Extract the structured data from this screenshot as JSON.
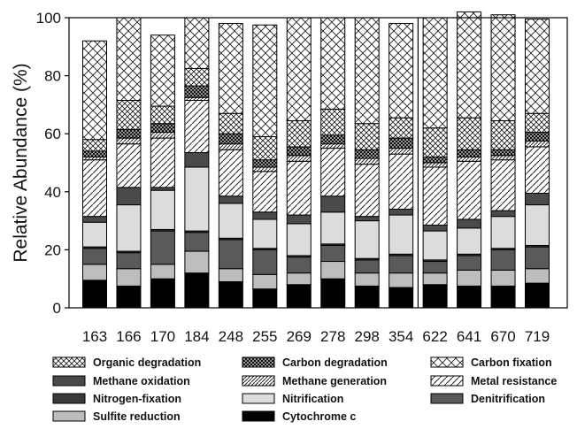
{
  "chart_data": {
    "type": "bar",
    "stacked": true,
    "ylabel": "Relative Abundance (%)",
    "xlabel": "",
    "ylim": [
      0,
      100
    ],
    "yticks": [
      0,
      20,
      40,
      60,
      80,
      100
    ],
    "grid": false,
    "legend_position": "bottom",
    "categories": [
      "163",
      "166",
      "170",
      "184",
      "248",
      "255",
      "269",
      "278",
      "298",
      "354",
      "622",
      "641",
      "670",
      "719"
    ],
    "series": [
      {
        "name": "Cytochrome c",
        "fill": "solid-black",
        "values": [
          9.5,
          7.5,
          10,
          12,
          9,
          6.5,
          8,
          10,
          7.5,
          7,
          8,
          7.5,
          7.5,
          8.5
        ]
      },
      {
        "name": "Sulfite reduction",
        "fill": "light-gray",
        "values": [
          5.5,
          6,
          5,
          7.5,
          4.5,
          5,
          4,
          6,
          4.5,
          5,
          4,
          5.5,
          5.5,
          5
        ]
      },
      {
        "name": "Denitrification",
        "fill": "dark-gray",
        "values": [
          5.5,
          5.5,
          11.5,
          6.5,
          10,
          8.5,
          5.5,
          5.5,
          4.5,
          6,
          4,
          5,
          7,
          7.5
        ]
      },
      {
        "name": "Nitrogen-fixation",
        "fill": "very-dark-gray",
        "values": [
          0.5,
          0.5,
          0.5,
          0.5,
          0.5,
          0.5,
          0.5,
          0.5,
          0.5,
          0.5,
          0.5,
          0.5,
          0.5,
          0.5
        ]
      },
      {
        "name": "Nitrification",
        "fill": "pale-gray",
        "values": [
          8.5,
          16,
          13.5,
          22,
          12,
          10,
          11,
          11,
          13,
          13.5,
          10,
          9,
          11,
          14
        ]
      },
      {
        "name": "Methane oxidation",
        "fill": "dark-charcoal",
        "values": [
          2,
          6,
          1,
          5,
          2.5,
          2.5,
          3,
          5.5,
          1.5,
          2,
          2,
          3,
          2,
          4
        ]
      },
      {
        "name": "Metal resistance",
        "fill": "hatch-light",
        "values": [
          19.5,
          15,
          17,
          18,
          16,
          14,
          18.5,
          16.5,
          18,
          19,
          20,
          20,
          17.5,
          16
        ]
      },
      {
        "name": "Methane generation",
        "fill": "hatch-medium",
        "values": [
          1,
          2,
          2,
          1,
          2,
          1.5,
          2,
          1.5,
          2,
          2,
          1.5,
          1.5,
          1.5,
          2
        ]
      },
      {
        "name": "Carbon degradation",
        "fill": "hatch-dense",
        "values": [
          2,
          3,
          3,
          4,
          3.5,
          2.5,
          3,
          3,
          3,
          3.5,
          2,
          2.5,
          2,
          3
        ]
      },
      {
        "name": "Organic degradation",
        "fill": "cross-hatch",
        "values": [
          4,
          10,
          6,
          6,
          7,
          8,
          9,
          9,
          9,
          7,
          10,
          11,
          10,
          6.5
        ]
      },
      {
        "name": "Carbon fixation",
        "fill": "cross-hatch-open",
        "values": [
          34,
          28.5,
          24.5,
          17.5,
          31,
          38.5,
          35.5,
          31.5,
          36.5,
          32.5,
          38,
          36.5,
          36.5,
          32.5
        ]
      }
    ],
    "legend": [
      [
        "Organic degradation",
        "Carbon degradation",
        "Carbon fixation"
      ],
      [
        "Methane oxidation",
        "Methane generation",
        "Metal resistance"
      ],
      [
        "Nitrogen-fixation",
        "Nitrification",
        "Denitrification"
      ],
      [
        "Sulfite reduction",
        "Cytochrome c"
      ]
    ]
  }
}
